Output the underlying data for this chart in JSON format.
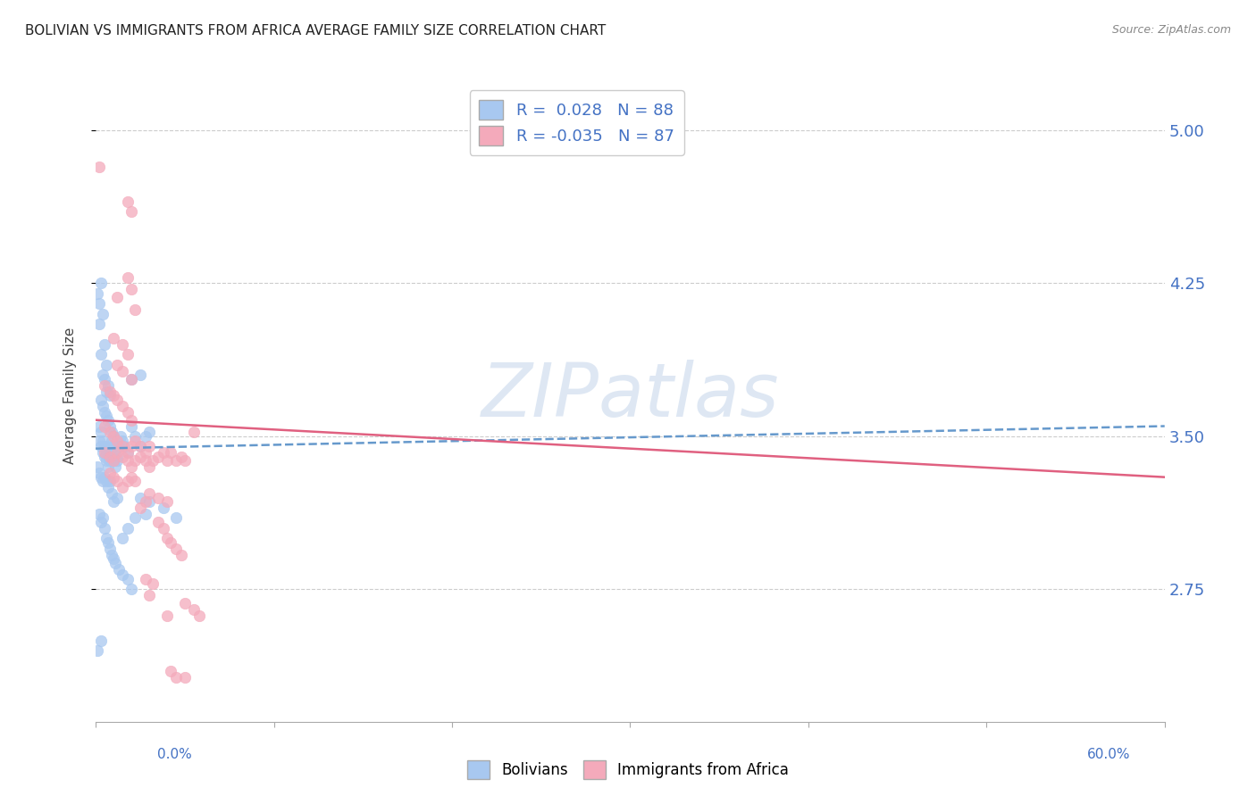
{
  "title": "BOLIVIAN VS IMMIGRANTS FROM AFRICA AVERAGE FAMILY SIZE CORRELATION CHART",
  "source": "Source: ZipAtlas.com",
  "ylabel": "Average Family Size",
  "yticks": [
    2.75,
    3.5,
    4.25,
    5.0
  ],
  "ytick_labels": [
    "2.75",
    "3.50",
    "4.25",
    "5.00"
  ],
  "xlim": [
    0.0,
    0.6
  ],
  "ylim": [
    2.1,
    5.3
  ],
  "legend_label1": "Bolivians",
  "legend_label2": "Immigrants from Africa",
  "color_blue": "#A8C8F0",
  "color_pink": "#F4AABB",
  "trendline_blue_color": "#6699CC",
  "trendline_pink_color": "#E06080",
  "watermark_color": "#C8D8EC",
  "background_color": "#FFFFFF",
  "blue_scatter": [
    [
      0.001,
      4.2
    ],
    [
      0.002,
      4.15
    ],
    [
      0.003,
      4.25
    ],
    [
      0.002,
      4.05
    ],
    [
      0.004,
      4.1
    ],
    [
      0.003,
      3.9
    ],
    [
      0.005,
      3.95
    ],
    [
      0.006,
      3.85
    ],
    [
      0.004,
      3.8
    ],
    [
      0.005,
      3.78
    ],
    [
      0.007,
      3.75
    ],
    [
      0.008,
      3.7
    ],
    [
      0.006,
      3.72
    ],
    [
      0.003,
      3.68
    ],
    [
      0.004,
      3.65
    ],
    [
      0.005,
      3.62
    ],
    [
      0.006,
      3.6
    ],
    [
      0.007,
      3.58
    ],
    [
      0.008,
      3.55
    ],
    [
      0.009,
      3.52
    ],
    [
      0.01,
      3.5
    ],
    [
      0.002,
      3.55
    ],
    [
      0.003,
      3.52
    ],
    [
      0.004,
      3.48
    ],
    [
      0.005,
      3.45
    ],
    [
      0.006,
      3.42
    ],
    [
      0.007,
      3.4
    ],
    [
      0.008,
      3.45
    ],
    [
      0.009,
      3.48
    ],
    [
      0.01,
      3.45
    ],
    [
      0.011,
      3.42
    ],
    [
      0.012,
      3.4
    ],
    [
      0.013,
      3.45
    ],
    [
      0.014,
      3.5
    ],
    [
      0.015,
      3.48
    ],
    [
      0.016,
      3.45
    ],
    [
      0.018,
      3.42
    ],
    [
      0.02,
      3.55
    ],
    [
      0.022,
      3.5
    ],
    [
      0.025,
      3.45
    ],
    [
      0.028,
      3.5
    ],
    [
      0.03,
      3.52
    ],
    [
      0.002,
      3.48
    ],
    [
      0.003,
      3.45
    ],
    [
      0.004,
      3.42
    ],
    [
      0.005,
      3.4
    ],
    [
      0.006,
      3.38
    ],
    [
      0.007,
      3.35
    ],
    [
      0.008,
      3.38
    ],
    [
      0.009,
      3.4
    ],
    [
      0.01,
      3.38
    ],
    [
      0.011,
      3.35
    ],
    [
      0.012,
      3.38
    ],
    [
      0.001,
      3.35
    ],
    [
      0.002,
      3.32
    ],
    [
      0.003,
      3.3
    ],
    [
      0.004,
      3.28
    ],
    [
      0.005,
      3.3
    ],
    [
      0.006,
      3.28
    ],
    [
      0.007,
      3.25
    ],
    [
      0.008,
      3.28
    ],
    [
      0.009,
      3.22
    ],
    [
      0.01,
      3.18
    ],
    [
      0.012,
      3.2
    ],
    [
      0.002,
      3.12
    ],
    [
      0.003,
      3.08
    ],
    [
      0.004,
      3.1
    ],
    [
      0.005,
      3.05
    ],
    [
      0.006,
      3.0
    ],
    [
      0.007,
      2.98
    ],
    [
      0.008,
      2.95
    ],
    [
      0.009,
      2.92
    ],
    [
      0.01,
      2.9
    ],
    [
      0.011,
      2.88
    ],
    [
      0.013,
      2.85
    ],
    [
      0.015,
      2.82
    ],
    [
      0.018,
      2.8
    ],
    [
      0.02,
      2.75
    ],
    [
      0.025,
      3.2
    ],
    [
      0.03,
      3.18
    ],
    [
      0.038,
      3.15
    ],
    [
      0.045,
      3.1
    ],
    [
      0.02,
      3.78
    ],
    [
      0.025,
      3.8
    ],
    [
      0.001,
      2.45
    ],
    [
      0.003,
      2.5
    ],
    [
      0.015,
      3.0
    ],
    [
      0.018,
      3.05
    ],
    [
      0.022,
      3.1
    ],
    [
      0.028,
      3.12
    ]
  ],
  "pink_scatter": [
    [
      0.002,
      4.82
    ],
    [
      0.018,
      4.65
    ],
    [
      0.02,
      4.6
    ],
    [
      0.018,
      4.28
    ],
    [
      0.02,
      4.22
    ],
    [
      0.012,
      4.18
    ],
    [
      0.022,
      4.12
    ],
    [
      0.01,
      3.98
    ],
    [
      0.015,
      3.95
    ],
    [
      0.018,
      3.9
    ],
    [
      0.012,
      3.85
    ],
    [
      0.015,
      3.82
    ],
    [
      0.02,
      3.78
    ],
    [
      0.005,
      3.75
    ],
    [
      0.008,
      3.72
    ],
    [
      0.01,
      3.7
    ],
    [
      0.012,
      3.68
    ],
    [
      0.015,
      3.65
    ],
    [
      0.018,
      3.62
    ],
    [
      0.02,
      3.58
    ],
    [
      0.005,
      3.55
    ],
    [
      0.008,
      3.52
    ],
    [
      0.01,
      3.5
    ],
    [
      0.012,
      3.48
    ],
    [
      0.015,
      3.45
    ],
    [
      0.018,
      3.42
    ],
    [
      0.02,
      3.45
    ],
    [
      0.022,
      3.48
    ],
    [
      0.025,
      3.45
    ],
    [
      0.028,
      3.42
    ],
    [
      0.03,
      3.45
    ],
    [
      0.005,
      3.42
    ],
    [
      0.008,
      3.4
    ],
    [
      0.01,
      3.38
    ],
    [
      0.012,
      3.42
    ],
    [
      0.015,
      3.4
    ],
    [
      0.018,
      3.38
    ],
    [
      0.02,
      3.35
    ],
    [
      0.022,
      3.38
    ],
    [
      0.025,
      3.4
    ],
    [
      0.028,
      3.38
    ],
    [
      0.03,
      3.35
    ],
    [
      0.032,
      3.38
    ],
    [
      0.035,
      3.4
    ],
    [
      0.038,
      3.42
    ],
    [
      0.04,
      3.38
    ],
    [
      0.042,
      3.42
    ],
    [
      0.045,
      3.38
    ],
    [
      0.048,
      3.4
    ],
    [
      0.05,
      3.38
    ],
    [
      0.008,
      3.32
    ],
    [
      0.01,
      3.3
    ],
    [
      0.012,
      3.28
    ],
    [
      0.015,
      3.25
    ],
    [
      0.018,
      3.28
    ],
    [
      0.02,
      3.3
    ],
    [
      0.022,
      3.28
    ],
    [
      0.03,
      3.22
    ],
    [
      0.035,
      3.2
    ],
    [
      0.04,
      3.18
    ],
    [
      0.025,
      3.15
    ],
    [
      0.028,
      3.18
    ],
    [
      0.035,
      3.08
    ],
    [
      0.038,
      3.05
    ],
    [
      0.04,
      3.0
    ],
    [
      0.042,
      2.98
    ],
    [
      0.045,
      2.95
    ],
    [
      0.048,
      2.92
    ],
    [
      0.028,
      2.8
    ],
    [
      0.032,
      2.78
    ],
    [
      0.03,
      2.72
    ],
    [
      0.05,
      2.68
    ],
    [
      0.055,
      2.65
    ],
    [
      0.04,
      2.62
    ],
    [
      0.042,
      2.35
    ],
    [
      0.05,
      2.32
    ],
    [
      0.055,
      3.52
    ],
    [
      0.045,
      2.32
    ],
    [
      0.058,
      2.62
    ]
  ],
  "blue_trend_x": [
    0.0,
    0.6
  ],
  "blue_trend_y": [
    3.44,
    3.55
  ],
  "pink_trend_x": [
    0.0,
    0.6
  ],
  "pink_trend_y": [
    3.58,
    3.3
  ]
}
